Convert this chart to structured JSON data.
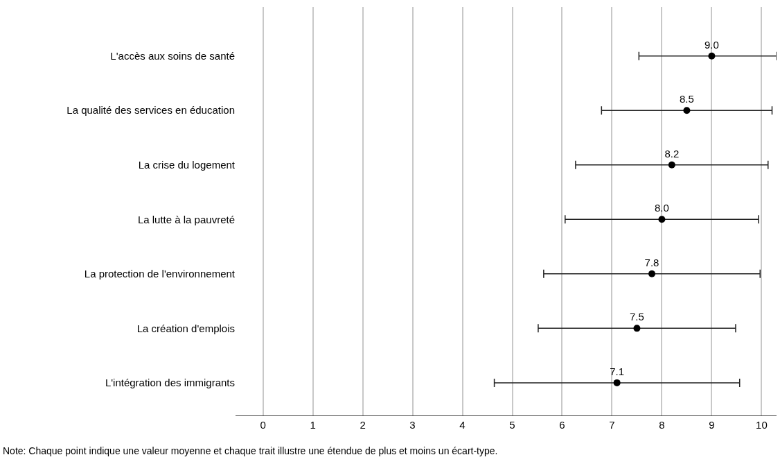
{
  "chart_data": {
    "type": "scatter",
    "orientation": "horizontal",
    "categories": [
      "L'accès aux soins de santé",
      "La qualité des services en éducation",
      "La crise du logement",
      "La lutte à la pauvreté",
      "La protection de l'environnement",
      "La création d'emplois",
      "L'intégration des immigrants"
    ],
    "values": [
      9.0,
      8.5,
      8.2,
      8.0,
      7.8,
      7.5,
      7.1
    ],
    "value_labels": [
      "9.0",
      "8.5",
      "8.2",
      "8.0",
      "7.8",
      "7.5",
      "7.1"
    ],
    "errors": [
      [
        7.54,
        10.3
      ],
      1.71,
      1.93,
      1.94,
      2.17,
      1.98,
      2.46
    ],
    "color": "#000000",
    "marker": "circle",
    "xlim": [
      -0.55,
      10.3
    ],
    "xticks": [
      0,
      1,
      2,
      3,
      4,
      5,
      6,
      7,
      8,
      9,
      10
    ],
    "grid": "x",
    "annotations": [
      "Note: Chaque point indique une valeur moyenne et chaque trait illustre une étendue de plus et moins un écart-type."
    ]
  }
}
